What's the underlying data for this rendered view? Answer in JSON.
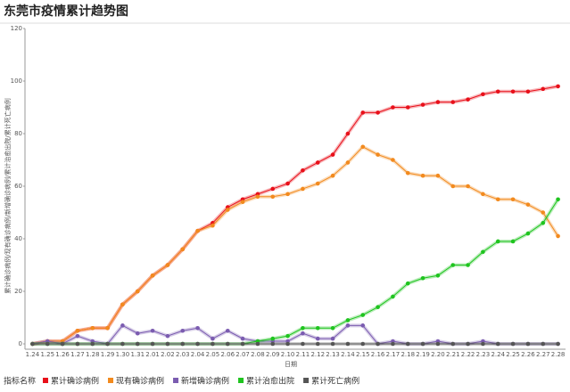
{
  "chart_data": {
    "type": "line",
    "title": "东莞市疫情累计趋势图",
    "x_label": "日期",
    "y_label": "累计确诊病例/现有确诊病例/新增确诊病例/累计治愈出院/累计死亡病例",
    "legend_title": "指标名称",
    "categories": [
      "1.24",
      "1.25",
      "1.26",
      "1.27",
      "1.28",
      "1.29",
      "1.30",
      "1.31",
      "2.01",
      "2.02",
      "2.03",
      "2.04",
      "2.05",
      "2.06",
      "2.07",
      "2.08",
      "2.09",
      "2.10",
      "2.11",
      "2.12",
      "2.13",
      "2.14",
      "2.15",
      "2.16",
      "2.17",
      "2.18",
      "2.19",
      "2.20",
      "2.21",
      "2.22",
      "2.23",
      "2.24",
      "2.25",
      "2.26",
      "2.27",
      "2.28"
    ],
    "ylim": [
      0,
      120
    ],
    "yticks": [
      0,
      20,
      40,
      60,
      80,
      100,
      120
    ],
    "grid": false,
    "series": [
      {
        "name": "累计确诊病例",
        "color": "#e8101a",
        "values": [
          0,
          1,
          1,
          5,
          6,
          6,
          15,
          20,
          26,
          30,
          36,
          43,
          46,
          52,
          55,
          57,
          59,
          61,
          66,
          69,
          72,
          80,
          88,
          88,
          90,
          90,
          91,
          92,
          92,
          93,
          95,
          96,
          96,
          96,
          97,
          98
        ]
      },
      {
        "name": "现有确诊病例",
        "color": "#f28a1e",
        "values": [
          0,
          1,
          1,
          5,
          6,
          6,
          15,
          20,
          26,
          30,
          36,
          43,
          45,
          51,
          54,
          56,
          56,
          57,
          59,
          61,
          64,
          69,
          75,
          72,
          70,
          65,
          64,
          64,
          60,
          60,
          57,
          55,
          55,
          53,
          50,
          41
        ]
      },
      {
        "name": "新增确诊病例",
        "color": "#7b5cb0",
        "values": [
          0,
          1,
          0,
          3,
          1,
          0,
          7,
          4,
          5,
          3,
          5,
          6,
          2,
          5,
          2,
          1,
          1,
          1,
          4,
          2,
          2,
          7,
          7,
          0,
          1,
          0,
          0,
          1,
          0,
          0,
          1,
          0,
          0,
          0,
          0,
          0
        ]
      },
      {
        "name": "累计治愈出院",
        "color": "#1fc41f",
        "values": [
          0,
          0,
          0,
          0,
          0,
          0,
          0,
          0,
          0,
          0,
          0,
          0,
          0,
          0,
          0,
          1,
          2,
          3,
          6,
          6,
          6,
          9,
          11,
          14,
          18,
          23,
          25,
          26,
          30,
          30,
          35,
          39,
          39,
          42,
          46,
          55
        ]
      },
      {
        "name": "累计死亡病例",
        "color": "#555555",
        "values": [
          0,
          0,
          0,
          0,
          0,
          0,
          0,
          0,
          0,
          0,
          0,
          0,
          0,
          0,
          0,
          0,
          0,
          0,
          0,
          0,
          0,
          0,
          0,
          0,
          0,
          0,
          0,
          0,
          0,
          0,
          0,
          0,
          0,
          0,
          0,
          0
        ]
      }
    ]
  }
}
